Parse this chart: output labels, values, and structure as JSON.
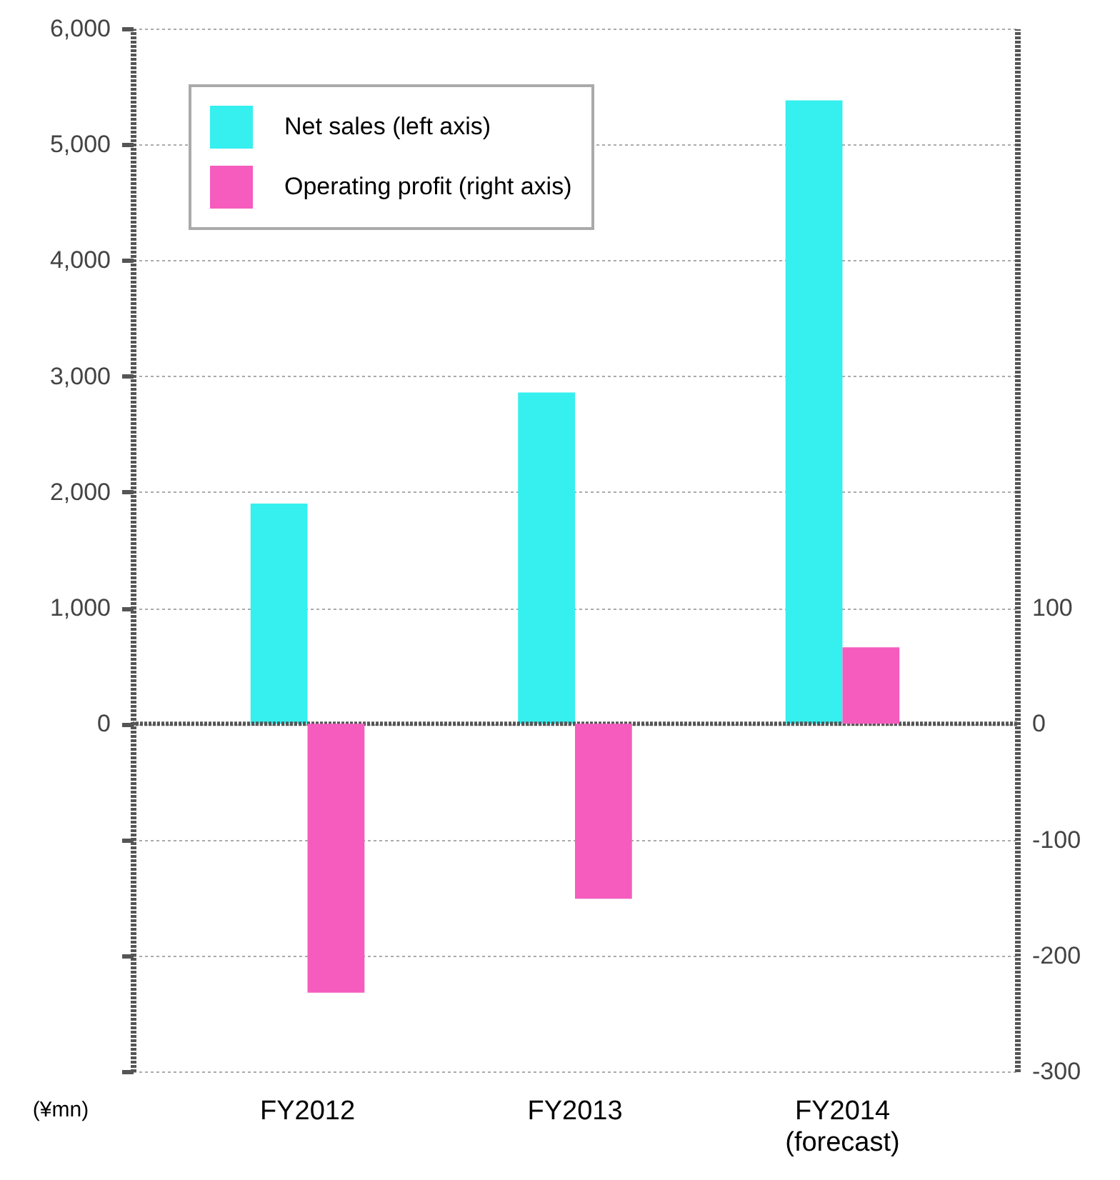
{
  "chart_data": {
    "type": "bar",
    "categories": [
      "FY2012",
      "FY2013",
      "FY2014\n(forecast)"
    ],
    "ylabel": "(¥mn)",
    "series": [
      {
        "name": "Net sales (left axis)",
        "color": "#36efef",
        "values": [
          1900,
          2860,
          5380
        ]
      },
      {
        "name": "Operating profit (right axis)",
        "color": "#f55cbe",
        "values": [
          -232,
          -151,
          66
        ],
        "axis": "y2"
      }
    ],
    "ylim": [
      -3000,
      6000
    ],
    "yticks": [
      {
        "value": -3000,
        "label": null
      },
      {
        "value": -2000,
        "label": null
      },
      {
        "value": -1000,
        "label": null
      },
      0,
      {
        "value": 1000,
        "label": "1,000"
      },
      {
        "value": 2000,
        "label": "2,000"
      },
      {
        "value": 3000,
        "label": "3,000"
      },
      {
        "value": 4000,
        "label": "4,000"
      },
      {
        "value": 5000,
        "label": "5,000"
      },
      {
        "value": 6000,
        "label": "6,000"
      }
    ],
    "y2lim": [
      -300,
      600
    ],
    "y2ticks": [
      -300,
      -200,
      -100,
      0,
      100
    ],
    "grid": "y",
    "legend": "top left",
    "ref_lines": [
      {
        "axis": "y",
        "value": 0,
        "color": "#555555",
        "line_style": "dotted"
      }
    ]
  }
}
